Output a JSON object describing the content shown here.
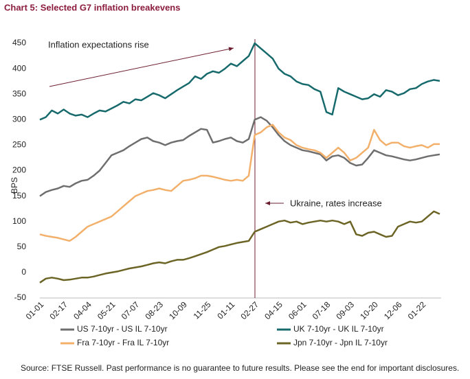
{
  "chart_data": {
    "type": "line",
    "title": "Chart 5: Selected G7 inflation breakevens",
    "y_label": "BPS",
    "annotations": [
      "Inflation expectations rise",
      "Ukraine, rates increase"
    ],
    "source": "Source: FTSE Russell. Past performance is no guarantee to future results. Please see the end for important disclosures.",
    "categories": [
      "01-01",
      null,
      null,
      null,
      "02-17",
      null,
      null,
      null,
      "04-04",
      null,
      null,
      null,
      "05-21",
      null,
      null,
      null,
      "07-07",
      null,
      null,
      null,
      "08-23",
      null,
      null,
      null,
      "10-09",
      null,
      null,
      null,
      "11-25",
      null,
      null,
      null,
      "01-11",
      null,
      null,
      null,
      "02-27",
      null,
      null,
      null,
      "04-15",
      null,
      null,
      null,
      "06-01",
      null,
      null,
      null,
      "07-18",
      null,
      null,
      null,
      "09-03",
      null,
      null,
      null,
      "10-20",
      null,
      null,
      null,
      "12-06",
      null,
      null,
      null,
      "01-22",
      null,
      null,
      null
    ],
    "series": [
      {
        "name": "US 7-10yr - US IL 7-10yr",
        "color": "#6e6e6e",
        "values": [
          150,
          158,
          162,
          165,
          170,
          168,
          175,
          180,
          182,
          190,
          200,
          215,
          230,
          235,
          240,
          248,
          255,
          262,
          265,
          258,
          255,
          250,
          255,
          258,
          260,
          268,
          275,
          282,
          280,
          255,
          258,
          262,
          265,
          258,
          255,
          262,
          300,
          305,
          298,
          285,
          270,
          258,
          250,
          245,
          240,
          238,
          235,
          232,
          220,
          228,
          230,
          225,
          215,
          210,
          212,
          225,
          240,
          235,
          230,
          228,
          225,
          222,
          220,
          222,
          225,
          228,
          230,
          232
        ]
      },
      {
        "name": "UK 7-10yr - UK IL 7-10yr",
        "color": "#176a6c",
        "values": [
          300,
          305,
          318,
          312,
          320,
          312,
          308,
          310,
          305,
          312,
          318,
          316,
          322,
          328,
          335,
          332,
          340,
          338,
          345,
          352,
          348,
          342,
          350,
          358,
          365,
          372,
          385,
          380,
          390,
          395,
          392,
          400,
          410,
          405,
          415,
          425,
          450,
          440,
          430,
          420,
          400,
          390,
          385,
          375,
          370,
          368,
          360,
          355,
          315,
          310,
          362,
          355,
          350,
          345,
          340,
          342,
          350,
          345,
          358,
          355,
          348,
          352,
          360,
          362,
          370,
          375,
          378,
          376
        ]
      },
      {
        "name": "Fra 7-10yr - Fra IL 7-10yr",
        "color": "#f2b06b",
        "values": [
          75,
          72,
          70,
          68,
          65,
          62,
          70,
          80,
          90,
          95,
          100,
          105,
          110,
          120,
          130,
          140,
          150,
          155,
          160,
          162,
          165,
          162,
          160,
          170,
          180,
          182,
          185,
          190,
          190,
          188,
          185,
          182,
          180,
          182,
          180,
          190,
          270,
          275,
          285,
          290,
          275,
          265,
          260,
          250,
          245,
          242,
          240,
          235,
          225,
          235,
          245,
          235,
          220,
          225,
          235,
          245,
          280,
          260,
          250,
          255,
          255,
          248,
          245,
          248,
          250,
          245,
          252,
          252
        ]
      },
      {
        "name": "Jpn 7-10yr - Jpn IL 7-10yr",
        "color": "#6b6425",
        "values": [
          -20,
          -12,
          -10,
          -12,
          -15,
          -14,
          -12,
          -10,
          -10,
          -8,
          -5,
          -2,
          0,
          2,
          5,
          8,
          10,
          12,
          15,
          18,
          20,
          18,
          22,
          25,
          25,
          28,
          32,
          36,
          40,
          45,
          50,
          52,
          55,
          58,
          60,
          62,
          80,
          85,
          90,
          95,
          100,
          102,
          98,
          100,
          95,
          98,
          100,
          102,
          100,
          102,
          100,
          95,
          100,
          75,
          72,
          78,
          80,
          75,
          70,
          72,
          90,
          95,
          100,
          98,
          100,
          110,
          120,
          115
        ]
      }
    ],
    "ylim": [
      -50,
      450
    ],
    "yticks": [
      -50,
      0,
      50,
      100,
      150,
      200,
      250,
      300,
      350,
      400,
      450
    ]
  }
}
